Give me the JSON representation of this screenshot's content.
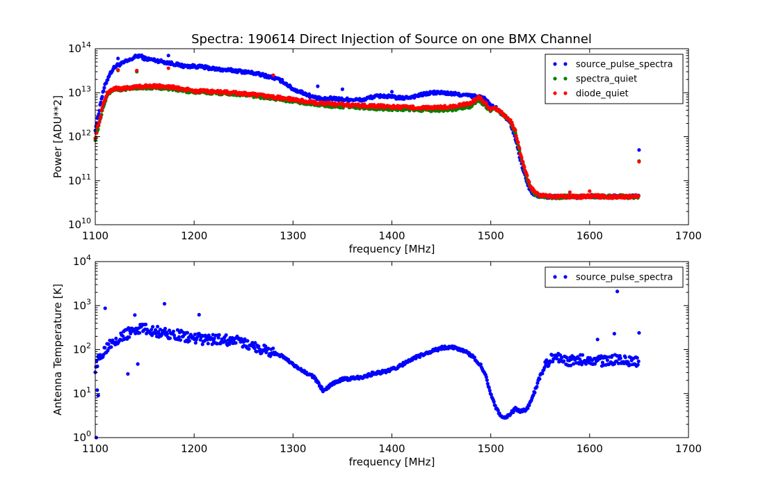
{
  "title": "Spectra: 190614 Direct Injection of Source on one BMX Channel",
  "chart_data": [
    {
      "type": "scatter",
      "xlabel": "frequency [MHz]",
      "ylabel": "Power [ADU**2]",
      "xlim": [
        1100,
        1700
      ],
      "ylim": [
        10000000000.0,
        100000000000000.0
      ],
      "yscale": "log",
      "xticks": [
        "1100",
        "1200",
        "1300",
        "1400",
        "1500",
        "1600",
        "1700"
      ],
      "yticks": [
        {
          "base": "10",
          "exp": "10"
        },
        {
          "base": "10",
          "exp": "11"
        },
        {
          "base": "10",
          "exp": "12"
        },
        {
          "base": "10",
          "exp": "13"
        },
        {
          "base": "10",
          "exp": "14"
        }
      ],
      "legend_position": "top-right",
      "series": [
        {
          "name": "source_pulse_spectra",
          "color": "#0000ff",
          "x": [
            1100,
            1103,
            1106,
            1110,
            1114,
            1118,
            1122,
            1126,
            1130,
            1135,
            1140,
            1145,
            1150,
            1160,
            1170,
            1180,
            1190,
            1200,
            1210,
            1220,
            1230,
            1240,
            1250,
            1260,
            1270,
            1280,
            1290,
            1300,
            1310,
            1320,
            1330,
            1340,
            1350,
            1360,
            1370,
            1380,
            1390,
            1400,
            1410,
            1420,
            1430,
            1440,
            1450,
            1460,
            1470,
            1480,
            1490,
            1495,
            1500,
            1505,
            1510,
            1515,
            1520,
            1525,
            1530,
            1535,
            1540,
            1545,
            1550,
            1560,
            1570,
            1580,
            1590,
            1600,
            1610,
            1620,
            1630,
            1640,
            1650
          ],
          "y": [
            1500000000000.0,
            3000000000000.0,
            7000000000000.0,
            15000000000000.0,
            25000000000000.0,
            35000000000000.0,
            42000000000000.0,
            45000000000000.0,
            50000000000000.0,
            55000000000000.0,
            65000000000000.0,
            70000000000000.0,
            60000000000000.0,
            55000000000000.0,
            50000000000000.0,
            45000000000000.0,
            40000000000000.0,
            40000000000000.0,
            38000000000000.0,
            35000000000000.0,
            33000000000000.0,
            32000000000000.0,
            30000000000000.0,
            28000000000000.0,
            25000000000000.0,
            22000000000000.0,
            18000000000000.0,
            12000000000000.0,
            10000000000000.0,
            8000000000000.0,
            7000000000000.0,
            7500000000000.0,
            7000000000000.0,
            7000000000000.0,
            6800000000000.0,
            8000000000000.0,
            8500000000000.0,
            8000000000000.0,
            7500000000000.0,
            8000000000000.0,
            9000000000000.0,
            10000000000000.0,
            10000000000000.0,
            9500000000000.0,
            9000000000000.0,
            8500000000000.0,
            8000000000000.0,
            7000000000000.0,
            5000000000000.0,
            4500000000000.0,
            3500000000000.0,
            2800000000000.0,
            2000000000000.0,
            900000000000.0,
            300000000000.0,
            120000000000.0,
            60000000000.0,
            48000000000.0,
            45000000000.0,
            43000000000.0,
            43000000000.0,
            44000000000.0,
            43000000000.0,
            45000000000.0,
            44000000000.0,
            43000000000.0,
            44000000000.0,
            43000000000.0,
            45000000000.0
          ]
        },
        {
          "name": "spectra_quiet",
          "color": "#008000",
          "x": [
            1100,
            1104,
            1108,
            1112,
            1116,
            1120,
            1130,
            1140,
            1150,
            1160,
            1170,
            1180,
            1190,
            1200,
            1220,
            1240,
            1260,
            1280,
            1300,
            1320,
            1340,
            1360,
            1380,
            1400,
            1420,
            1440,
            1460,
            1470,
            1480,
            1488,
            1495,
            1500,
            1505,
            1510,
            1515,
            1520,
            1525,
            1530,
            1535,
            1540,
            1545,
            1550,
            1560,
            1570,
            1580,
            1590,
            1600,
            1610,
            1620,
            1630,
            1640,
            1650
          ],
          "y": [
            900000000000.0,
            2000000000000.0,
            5000000000000.0,
            9000000000000.0,
            11000000000000.0,
            12000000000000.0,
            12000000000000.0,
            13000000000000.0,
            13000000000000.0,
            13000000000000.0,
            13000000000000.0,
            12000000000000.0,
            11000000000000.0,
            10500000000000.0,
            10000000000000.0,
            9500000000000.0,
            8500000000000.0,
            7500000000000.0,
            6500000000000.0,
            5500000000000.0,
            5000000000000.0,
            4800000000000.0,
            4500000000000.0,
            4300000000000.0,
            4200000000000.0,
            4000000000000.0,
            4200000000000.0,
            4500000000000.0,
            5000000000000.0,
            7000000000000.0,
            5000000000000.0,
            4000000000000.0,
            4300000000000.0,
            3500000000000.0,
            2800000000000.0,
            2200000000000.0,
            1200000000000.0,
            400000000000.0,
            150000000000.0,
            70000000000.0,
            50000000000.0,
            45000000000.0,
            43000000000.0,
            43000000000.0,
            44000000000.0,
            43000000000.0,
            45000000000.0,
            44000000000.0,
            43000000000.0,
            44000000000.0,
            43000000000.0,
            44000000000.0
          ]
        },
        {
          "name": "diode_quiet",
          "color": "#ff0000",
          "x": [
            1100,
            1104,
            1108,
            1112,
            1116,
            1120,
            1130,
            1140,
            1150,
            1160,
            1170,
            1180,
            1190,
            1200,
            1220,
            1240,
            1260,
            1280,
            1300,
            1320,
            1340,
            1360,
            1380,
            1400,
            1420,
            1440,
            1460,
            1470,
            1480,
            1488,
            1495,
            1500,
            1505,
            1510,
            1515,
            1520,
            1525,
            1530,
            1535,
            1540,
            1545,
            1550,
            1560,
            1570,
            1580,
            1590,
            1600,
            1610,
            1620,
            1630,
            1640,
            1650
          ],
          "y": [
            1000000000000.0,
            2200000000000.0,
            5500000000000.0,
            9500000000000.0,
            11500000000000.0,
            12500000000000.0,
            12500000000000.0,
            13500000000000.0,
            14000000000000.0,
            14000000000000.0,
            14000000000000.0,
            13000000000000.0,
            12000000000000.0,
            11000000000000.0,
            10500000000000.0,
            10000000000000.0,
            9000000000000.0,
            8000000000000.0,
            7000000000000.0,
            6000000000000.0,
            5500000000000.0,
            5200000000000.0,
            5000000000000.0,
            4800000000000.0,
            4600000000000.0,
            4500000000000.0,
            4800000000000.0,
            5200000000000.0,
            5800000000000.0,
            8000000000000.0,
            5500000000000.0,
            4300000000000.0,
            4500000000000.0,
            3600000000000.0,
            2900000000000.0,
            2300000000000.0,
            1300000000000.0,
            420000000000.0,
            160000000000.0,
            75000000000.0,
            52000000000.0,
            46000000000.0,
            44000000000.0,
            43000000000.0,
            44000000000.0,
            43000000000.0,
            45000000000.0,
            44000000000.0,
            43000000000.0,
            44000000000.0,
            43000000000.0,
            45000000000.0
          ]
        }
      ],
      "outliers": [
        {
          "series": "source_pulse_spectra",
          "x": 1123,
          "y": 60000000000000.0
        },
        {
          "series": "source_pulse_spectra",
          "x": 1174,
          "y": 70000000000000.0
        },
        {
          "series": "source_pulse_spectra",
          "x": 1325,
          "y": 14000000000000.0
        },
        {
          "series": "source_pulse_spectra",
          "x": 1350,
          "y": 12000000000000.0
        },
        {
          "series": "source_pulse_spectra",
          "x": 1400,
          "y": 10500000000000.0
        },
        {
          "series": "source_pulse_spectra",
          "x": 1650,
          "y": 500000000000.0
        },
        {
          "series": "spectra_quiet",
          "x": 1123,
          "y": 32000000000000.0
        },
        {
          "series": "spectra_quiet",
          "x": 1142,
          "y": 30000000000000.0
        },
        {
          "series": "spectra_quiet",
          "x": 1650,
          "y": 280000000000.0
        },
        {
          "series": "diode_quiet",
          "x": 1123,
          "y": 33000000000000.0
        },
        {
          "series": "diode_quiet",
          "x": 1142,
          "y": 32000000000000.0
        },
        {
          "series": "diode_quiet",
          "x": 1174,
          "y": 36000000000000.0
        },
        {
          "series": "diode_quiet",
          "x": 1280,
          "y": 25000000000000.0
        },
        {
          "series": "diode_quiet",
          "x": 1580,
          "y": 55000000000.0
        },
        {
          "series": "diode_quiet",
          "x": 1600,
          "y": 58000000000.0
        },
        {
          "series": "diode_quiet",
          "x": 1650,
          "y": 270000000000.0
        }
      ]
    },
    {
      "type": "scatter",
      "xlabel": "frequency [MHz]",
      "ylabel": "Antenna Temperature [K]",
      "xlim": [
        1100,
        1700
      ],
      "ylim": [
        1,
        10000
      ],
      "yscale": "log",
      "xticks": [
        "1100",
        "1200",
        "1300",
        "1400",
        "1500",
        "1600",
        "1700"
      ],
      "yticks": [
        {
          "base": "10",
          "exp": "0"
        },
        {
          "base": "10",
          "exp": "1"
        },
        {
          "base": "10",
          "exp": "2"
        },
        {
          "base": "10",
          "exp": "3"
        },
        {
          "base": "10",
          "exp": "4"
        }
      ],
      "legend_position": "top-right",
      "series": [
        {
          "name": "source_pulse_spectra",
          "color": "#0000ff",
          "x": [
            1100,
            1104,
            1108,
            1112,
            1116,
            1120,
            1125,
            1130,
            1135,
            1140,
            1145,
            1150,
            1160,
            1170,
            1180,
            1190,
            1200,
            1210,
            1220,
            1230,
            1240,
            1250,
            1260,
            1270,
            1280,
            1290,
            1300,
            1310,
            1320,
            1325,
            1330,
            1335,
            1340,
            1350,
            1360,
            1370,
            1380,
            1390,
            1400,
            1410,
            1420,
            1430,
            1440,
            1450,
            1460,
            1470,
            1480,
            1490,
            1495,
            1500,
            1505,
            1510,
            1515,
            1520,
            1525,
            1530,
            1535,
            1540,
            1545,
            1550,
            1555,
            1560,
            1570,
            1580,
            1590,
            1600,
            1610,
            1620,
            1630,
            1640,
            1650
          ],
          "y": [
            40,
            60,
            90,
            120,
            150,
            170,
            190,
            210,
            250,
            280,
            300,
            290,
            260,
            240,
            220,
            200,
            180,
            170,
            170,
            165,
            160,
            140,
            120,
            100,
            85,
            70,
            45,
            32,
            25,
            18,
            12,
            14,
            17,
            21,
            22,
            24,
            28,
            31,
            35,
            45,
            60,
            75,
            90,
            110,
            115,
            100,
            75,
            45,
            25,
            10,
            5,
            3,
            2.7,
            3.5,
            4.5,
            4,
            4.2,
            6,
            12,
            25,
            40,
            60,
            62,
            55,
            58,
            62,
            55,
            58,
            60,
            55,
            55
          ]
        }
      ],
      "outliers": [
        {
          "series": "source_pulse_spectra",
          "x": 1101,
          "y": 1
        },
        {
          "series": "source_pulse_spectra",
          "x": 1102,
          "y": 12
        },
        {
          "series": "source_pulse_spectra",
          "x": 1103,
          "y": 9
        },
        {
          "series": "source_pulse_spectra",
          "x": 1110,
          "y": 870
        },
        {
          "series": "source_pulse_spectra",
          "x": 1133,
          "y": 28
        },
        {
          "series": "source_pulse_spectra",
          "x": 1143,
          "y": 47
        },
        {
          "series": "source_pulse_spectra",
          "x": 1170,
          "y": 1100
        },
        {
          "series": "source_pulse_spectra",
          "x": 1205,
          "y": 620
        },
        {
          "series": "source_pulse_spectra",
          "x": 1140,
          "y": 610
        },
        {
          "series": "source_pulse_spectra",
          "x": 1628,
          "y": 2100
        },
        {
          "series": "source_pulse_spectra",
          "x": 1625,
          "y": 230
        },
        {
          "series": "source_pulse_spectra",
          "x": 1650,
          "y": 240
        },
        {
          "series": "source_pulse_spectra",
          "x": 1608,
          "y": 170
        }
      ]
    }
  ]
}
